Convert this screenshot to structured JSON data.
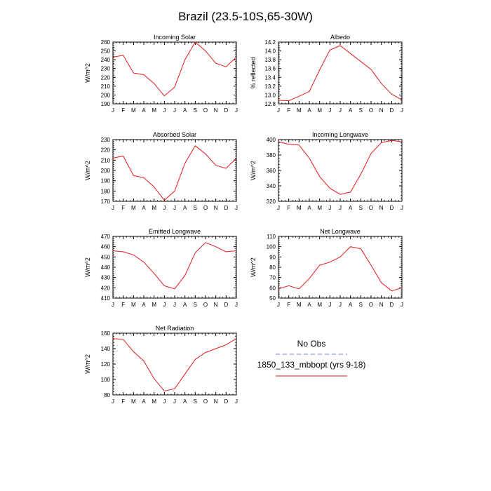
{
  "page": {
    "title": "Brazil (23.5-10S,65-30W)"
  },
  "months": [
    "J",
    "F",
    "M",
    "A",
    "M",
    "J",
    "J",
    "A",
    "S",
    "O",
    "N",
    "D",
    "J"
  ],
  "legend": {
    "entries": [
      {
        "label": "No Obs",
        "color": "#7777ff",
        "dashed": true
      },
      {
        "label": "1850_133_mbbopt (yrs 9-18)",
        "color": "#e41a1c",
        "dashed": false
      }
    ]
  },
  "chart_data": [
    {
      "type": "line",
      "title": "Incoming Solar",
      "ylabel": "W/m^2",
      "ylim": [
        190,
        260
      ],
      "yticks": [
        190,
        200,
        210,
        220,
        230,
        240,
        250,
        260
      ],
      "series": [
        {
          "color": "#e41a1c",
          "values": [
            243,
            245,
            225,
            223,
            213,
            199,
            209,
            240,
            260,
            250,
            236,
            232,
            243
          ]
        }
      ]
    },
    {
      "type": "line",
      "title": "Albedo",
      "ylabel": "% reflected",
      "ylim": [
        12.8,
        14.2
      ],
      "yticks": [
        "12.8",
        "13.0",
        "13.2",
        "13.4",
        "13.6",
        "13.8",
        "14.0",
        "14.2"
      ],
      "series": [
        {
          "color": "#e41a1c",
          "values": [
            12.88,
            12.87,
            12.97,
            13.08,
            13.57,
            14.02,
            14.12,
            13.94,
            13.76,
            13.58,
            13.26,
            13.02,
            12.89
          ]
        }
      ]
    },
    {
      "type": "line",
      "title": "Absorbed Solar",
      "ylabel": "W/m^2",
      "ylim": [
        170,
        230
      ],
      "yticks": [
        170,
        180,
        190,
        200,
        210,
        220,
        230
      ],
      "series": [
        {
          "color": "#e41a1c",
          "values": [
            212,
            214,
            195,
            193,
            184,
            171,
            180,
            207,
            224,
            216,
            205,
            202,
            212
          ]
        }
      ]
    },
    {
      "type": "line",
      "title": "Incoming Longwave",
      "ylabel": "W/m^2",
      "ylim": [
        320,
        400
      ],
      "yticks": [
        320,
        340,
        360,
        380,
        400
      ],
      "series": [
        {
          "color": "#e41a1c",
          "values": [
            397,
            394,
            393,
            376,
            352,
            337,
            329,
            332,
            355,
            382,
            396,
            399,
            397
          ]
        }
      ]
    },
    {
      "type": "line",
      "title": "Emitted Longwave",
      "ylabel": "W/m^2",
      "ylim": [
        410,
        470
      ],
      "yticks": [
        410,
        420,
        430,
        440,
        450,
        460,
        470
      ],
      "series": [
        {
          "color": "#e41a1c",
          "values": [
            456,
            455,
            452,
            445,
            434,
            422,
            419,
            432,
            454,
            464,
            460,
            455,
            456
          ]
        }
      ]
    },
    {
      "type": "line",
      "title": "Net Longwave",
      "ylabel": "W/m^2",
      "ylim": [
        50,
        110
      ],
      "yticks": [
        50,
        60,
        70,
        80,
        90,
        100,
        110
      ],
      "series": [
        {
          "color": "#e41a1c",
          "values": [
            59,
            62,
            59,
            69,
            82,
            85,
            90,
            100,
            98,
            82,
            65,
            57,
            60
          ]
        }
      ]
    },
    {
      "type": "line",
      "title": "Net Radiation",
      "ylabel": "W/m^2",
      "ylim": [
        80,
        160
      ],
      "yticks": [
        80,
        100,
        120,
        140,
        160
      ],
      "series": [
        {
          "color": "#e41a1c",
          "values": [
            153,
            152,
            136,
            124,
            101,
            85,
            88,
            107,
            126,
            135,
            140,
            145,
            153
          ]
        }
      ]
    }
  ]
}
